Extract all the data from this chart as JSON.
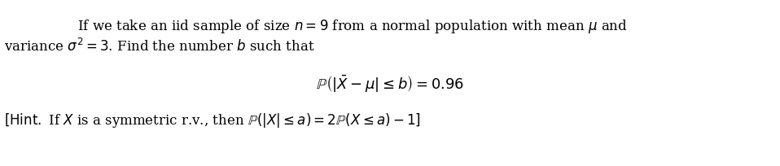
{
  "background_color": "#ffffff",
  "figsize": [
    9.58,
    2.05
  ],
  "dpi": 100,
  "line1": "If we take an iid sample of size $n = 9$ from a normal population with mean $\\mu$ and",
  "line2": "variance $\\sigma^2 = 3$. Find the number $b$ such that",
  "formula": "$\\mathbb{P}\\left(|\\bar{X} - \\mu| \\leq b\\right) = 0.96$",
  "hint": "$[\\mathrm{Hint.}$ If $X$ is a symmetric r.v., then $\\mathbb{P}(|X| \\leq a) = 2\\mathbb{P}(X \\leq a) - 1]$",
  "text_color": "#000000",
  "font_size_main": 12,
  "font_size_formula": 13,
  "font_size_hint": 12
}
